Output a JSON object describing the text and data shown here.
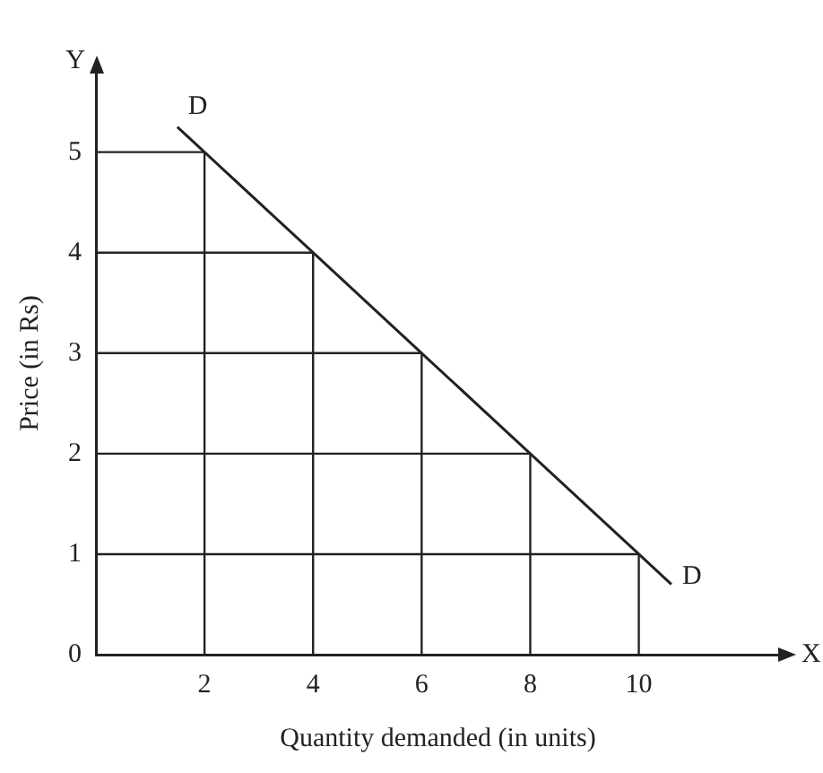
{
  "chart_data": {
    "type": "line",
    "xlabel": "Quantity demanded (in units)",
    "ylabel": "Price (in Rs)",
    "x": [
      1.5,
      2,
      4,
      6,
      8,
      10,
      10.6
    ],
    "series": [
      {
        "color": "#222222",
        "values": [
          5.25,
          5,
          4,
          3,
          2,
          1,
          0.7
        ]
      },
      {
        "color": "#222222",
        "x": [
          2,
          2
        ],
        "values": [
          0,
          5
        ]
      },
      {
        "color": "#222222",
        "x": [
          4,
          4
        ],
        "values": [
          0,
          4
        ]
      },
      {
        "color": "#222222",
        "x": [
          6,
          6
        ],
        "values": [
          0,
          3
        ]
      },
      {
        "color": "#222222",
        "x": [
          8,
          8
        ],
        "values": [
          0,
          2
        ]
      },
      {
        "color": "#222222",
        "x": [
          10,
          10
        ],
        "values": [
          0,
          1
        ]
      },
      {
        "color": "#222222",
        "x": [
          0,
          2
        ],
        "values": [
          5,
          5
        ]
      },
      {
        "color": "#222222",
        "x": [
          0,
          4
        ],
        "values": [
          4,
          4
        ]
      },
      {
        "color": "#222222",
        "x": [
          0,
          6
        ],
        "values": [
          3,
          3
        ]
      },
      {
        "color": "#222222",
        "x": [
          0,
          8
        ],
        "values": [
          2,
          2
        ]
      },
      {
        "color": "#222222",
        "x": [
          0,
          10
        ],
        "values": [
          1,
          1
        ]
      }
    ],
    "xlim": [
      0,
      12.6
    ],
    "ylim": [
      0,
      5.8
    ],
    "xticks": [
      2,
      4,
      6,
      8,
      10
    ],
    "yticks": [
      0,
      1,
      2,
      3,
      4,
      5
    ],
    "legend": false,
    "marker": "none",
    "line_style": "solid",
    "annotations": [
      "Y",
      "X",
      {
        "text": "D",
        "x": 1.5,
        "y": 5.25
      },
      {
        "text": "D",
        "x": 10.6,
        "y": 0.7
      }
    ]
  }
}
